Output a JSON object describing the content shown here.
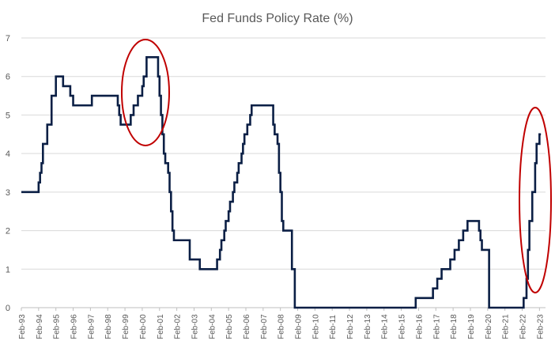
{
  "chart_data": {
    "type": "line",
    "title": "Fed Funds Policy Rate (%)",
    "xlabel": "",
    "ylabel": "",
    "ylim": [
      0,
      7
    ],
    "yticks": [
      "0",
      "1",
      "2",
      "3",
      "4",
      "5",
      "6",
      "7"
    ],
    "xticks": [
      "Feb-93",
      "Feb-94",
      "Feb-95",
      "Feb-96",
      "Feb-97",
      "Feb-98",
      "Feb-99",
      "Feb-00",
      "Feb-01",
      "Feb-02",
      "Feb-03",
      "Feb-04",
      "Feb-05",
      "Feb-06",
      "Feb-07",
      "Feb-08",
      "Feb-09",
      "Feb-10",
      "Feb-11",
      "Feb-12",
      "Feb-13",
      "Feb-14",
      "Feb-15",
      "Feb-16",
      "Feb-17",
      "Feb-18",
      "Feb-19",
      "Feb-20",
      "Feb-21",
      "Feb-22",
      "Feb-23"
    ],
    "grid": "horizontal",
    "legend": "none",
    "series": [
      {
        "color": "#0b1f45",
        "step": true,
        "x": [
          "1993-02",
          "1994-02",
          "1994-03",
          "1994-04",
          "1994-05",
          "1994-08",
          "1994-11",
          "1995-02",
          "1995-07",
          "1995-12",
          "1996-02",
          "1997-03",
          "1998-09",
          "1998-10",
          "1998-11",
          "1999-06",
          "1999-08",
          "1999-11",
          "2000-02",
          "2000-03",
          "2000-05",
          "2001-01",
          "2001-02",
          "2001-03",
          "2001-04",
          "2001-05",
          "2001-06",
          "2001-08",
          "2001-09",
          "2001-10",
          "2001-11",
          "2001-12",
          "2002-11",
          "2003-06",
          "2004-06",
          "2004-08",
          "2004-09",
          "2004-11",
          "2004-12",
          "2005-02",
          "2005-03",
          "2005-05",
          "2005-06",
          "2005-08",
          "2005-09",
          "2005-11",
          "2005-12",
          "2006-01",
          "2006-03",
          "2006-05",
          "2006-06",
          "2007-09",
          "2007-10",
          "2007-12",
          "2008-01",
          "2008-02",
          "2008-03",
          "2008-04",
          "2008-10",
          "2008-12",
          "2015-12",
          "2016-12",
          "2017-03",
          "2017-06",
          "2017-12",
          "2018-03",
          "2018-06",
          "2018-09",
          "2018-12",
          "2019-08",
          "2019-09",
          "2019-10",
          "2020-03",
          "2022-03",
          "2022-05",
          "2022-06",
          "2022-07",
          "2022-09",
          "2022-11",
          "2022-12",
          "2023-02",
          "2023-03"
        ],
        "values": [
          3.0,
          3.25,
          3.5,
          3.75,
          4.25,
          4.75,
          5.5,
          6.0,
          5.75,
          5.5,
          5.25,
          5.5,
          5.25,
          5.0,
          4.75,
          5.0,
          5.25,
          5.5,
          5.75,
          6.0,
          6.5,
          6.0,
          5.5,
          5.0,
          4.5,
          4.0,
          3.75,
          3.5,
          3.0,
          2.5,
          2.0,
          1.75,
          1.25,
          1.0,
          1.25,
          1.5,
          1.75,
          2.0,
          2.25,
          2.5,
          2.75,
          3.0,
          3.25,
          3.5,
          3.75,
          4.0,
          4.25,
          4.5,
          4.75,
          5.0,
          5.25,
          4.75,
          4.5,
          4.25,
          3.5,
          3.0,
          2.25,
          2.0,
          1.0,
          0.0,
          0.25,
          0.5,
          0.75,
          1.0,
          1.25,
          1.5,
          1.75,
          2.0,
          2.25,
          2.0,
          1.75,
          1.5,
          0.0,
          0.25,
          0.75,
          1.5,
          2.25,
          3.0,
          3.75,
          4.25,
          4.5,
          4.5
        ]
      }
    ],
    "annotations": [
      {
        "type": "ellipse",
        "color": "#c00000",
        "around": "2000 peak"
      },
      {
        "type": "ellipse",
        "color": "#c00000",
        "around": "2022-23 rise"
      }
    ]
  }
}
